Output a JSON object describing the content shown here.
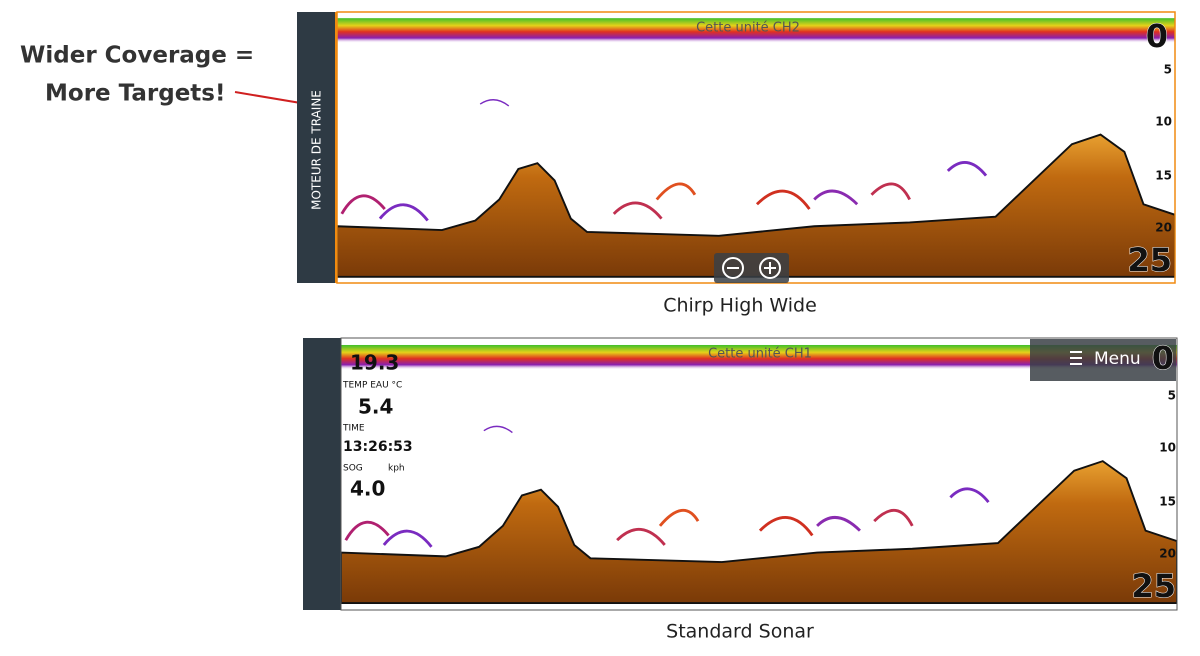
{
  "annotation": {
    "lines": [
      "Wider Coverage =",
      "More Targets!"
    ]
  },
  "panels": [
    {
      "side_label": "MOTEUR DE TRAINE",
      "header": "Cette unité CH2",
      "depth_scale": [
        "0",
        "5",
        "10",
        "15",
        "20",
        "25"
      ],
      "caption": "Chirp High Wide"
    },
    {
      "header": "Cette unité CH1",
      "menu": "Menu",
      "readouts": [
        {
          "value": "19.3"
        },
        {
          "label": "TEMP EAU °C",
          "value": "5.4"
        },
        {
          "label": "TIME",
          "value": "13:26:53"
        },
        {
          "label": "SOG",
          "unit": "kph",
          "value": "4.0"
        }
      ],
      "depth_scale": [
        "0",
        "5",
        "10",
        "15",
        "20",
        "25"
      ],
      "caption": "Standard Sonar"
    }
  ]
}
